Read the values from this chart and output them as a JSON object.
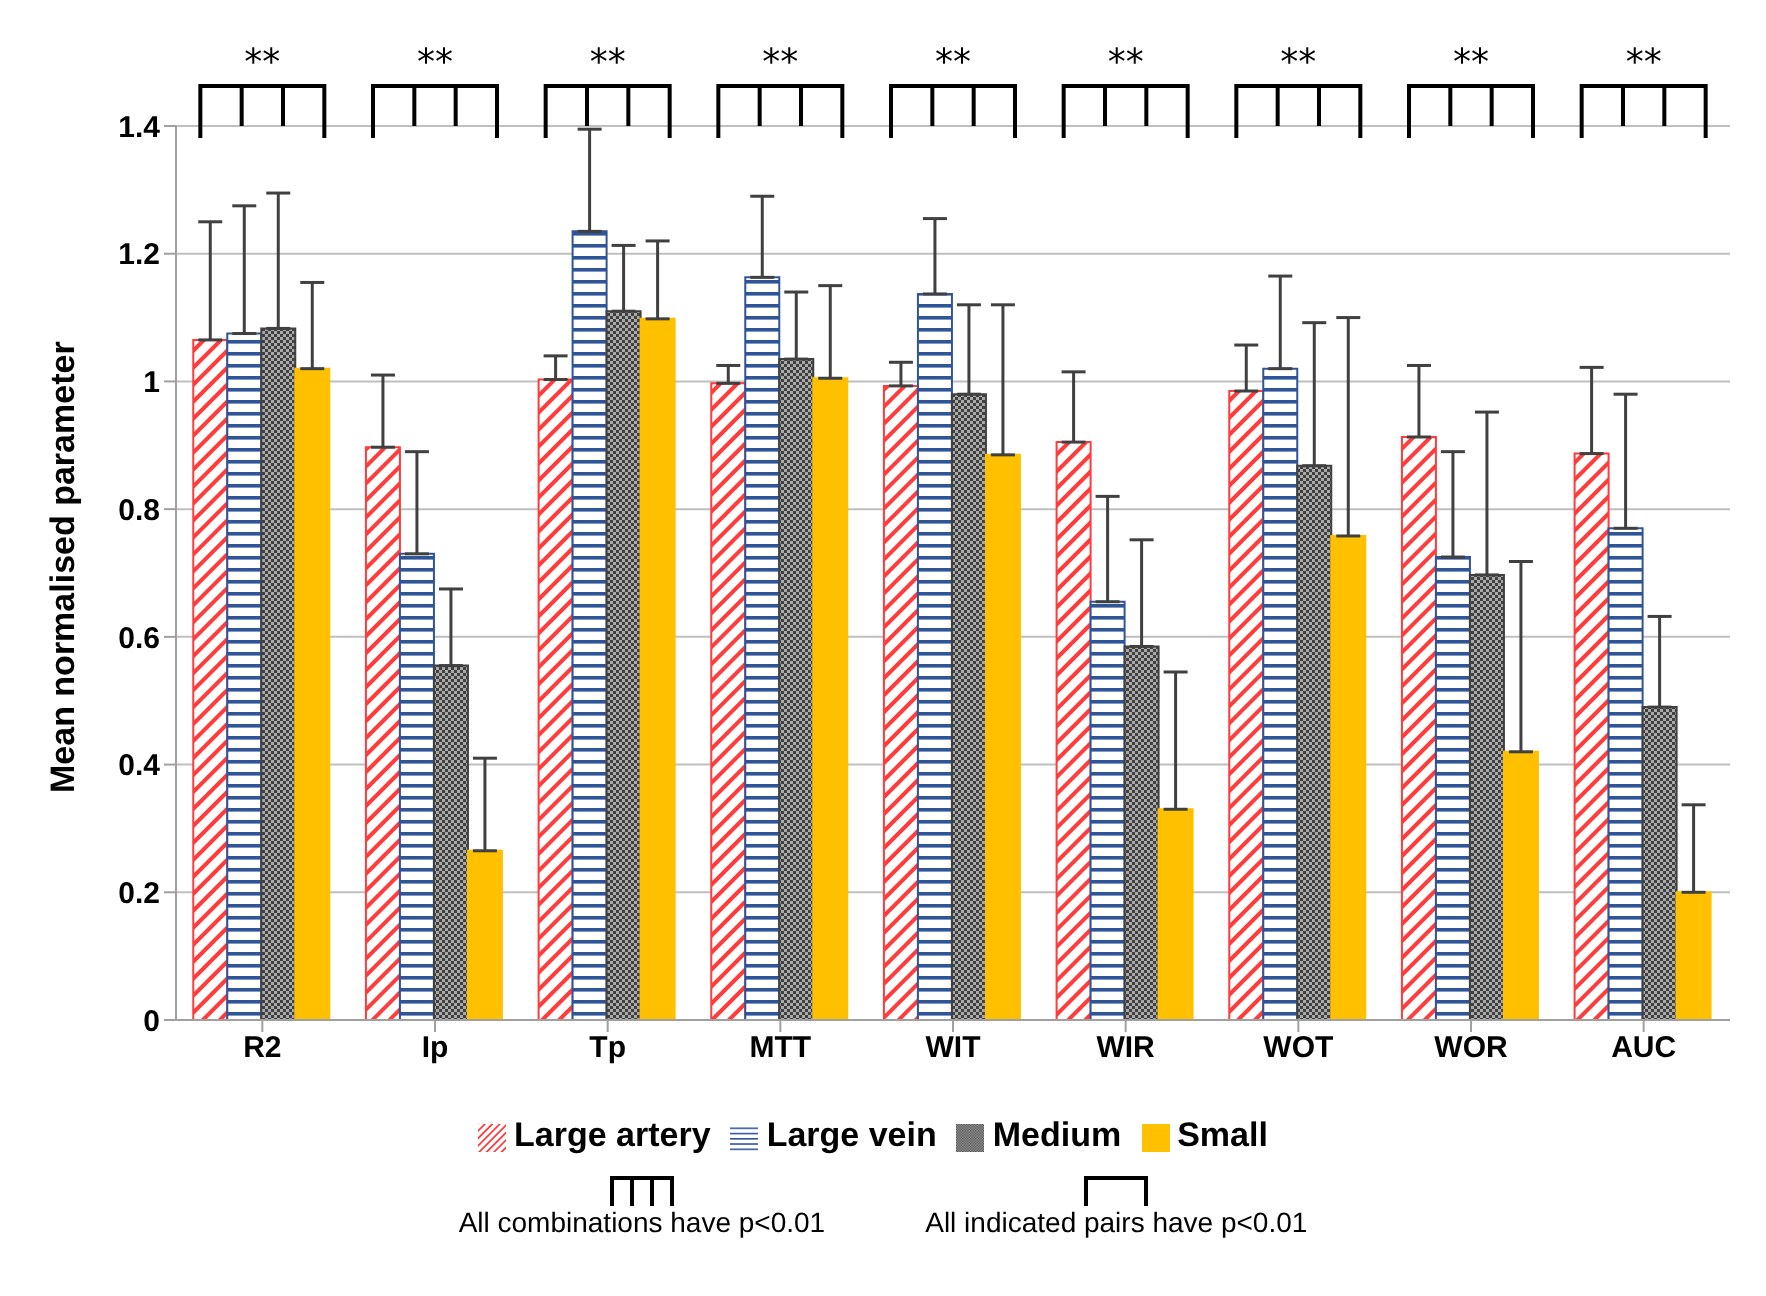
{
  "chart_data": {
    "type": "bar",
    "ylabel": "Mean normalised parameter",
    "categories": [
      "R2",
      "Ip",
      "Tp",
      "MTT",
      "WIT",
      "WIR",
      "WOT",
      "WOR",
      "AUC"
    ],
    "series": [
      {
        "name": "Large artery",
        "color": "#ff3b3b",
        "values": [
          1.065,
          0.897,
          1.003,
          0.997,
          0.993,
          0.905,
          0.985,
          0.913,
          0.887
        ],
        "errors": [
          [
            1.065,
            1.25
          ],
          [
            0.897,
            1.01
          ],
          [
            1.003,
            1.04
          ],
          [
            0.997,
            1.025
          ],
          [
            0.993,
            1.03
          ],
          [
            0.905,
            1.015
          ],
          [
            0.985,
            1.057
          ],
          [
            0.913,
            1.025
          ],
          [
            0.887,
            1.022
          ]
        ]
      },
      {
        "name": "Large vein",
        "color": "#2f5597",
        "values": [
          1.075,
          0.73,
          1.235,
          1.163,
          1.137,
          0.655,
          1.02,
          0.725,
          0.77
        ],
        "errors": [
          [
            1.075,
            1.275
          ],
          [
            0.73,
            0.89
          ],
          [
            1.235,
            1.395
          ],
          [
            1.163,
            1.29
          ],
          [
            1.137,
            1.255
          ],
          [
            0.655,
            0.82
          ],
          [
            1.02,
            1.165
          ],
          [
            0.725,
            0.89
          ],
          [
            0.77,
            0.98
          ]
        ]
      },
      {
        "name": "Medium",
        "color": "#404040",
        "values": [
          1.083,
          0.555,
          1.11,
          1.035,
          0.98,
          0.585,
          0.868,
          0.697,
          0.49
        ],
        "errors": [
          [
            1.083,
            1.295
          ],
          [
            0.555,
            0.675
          ],
          [
            1.11,
            1.213
          ],
          [
            1.035,
            1.14
          ],
          [
            0.98,
            1.12
          ],
          [
            0.585,
            0.752
          ],
          [
            0.868,
            1.092
          ],
          [
            0.697,
            0.952
          ],
          [
            0.49,
            0.632
          ]
        ]
      },
      {
        "name": "Small",
        "color": "#ffc000",
        "values": [
          1.02,
          0.265,
          1.098,
          1.005,
          0.885,
          0.33,
          0.758,
          0.42,
          0.2
        ],
        "errors": [
          [
            1.02,
            1.155
          ],
          [
            0.265,
            0.41
          ],
          [
            1.098,
            1.22
          ],
          [
            1.005,
            1.15
          ],
          [
            0.885,
            1.12
          ],
          [
            0.33,
            0.545
          ],
          [
            0.758,
            1.1
          ],
          [
            0.42,
            0.718
          ],
          [
            0.2,
            0.337
          ]
        ]
      }
    ],
    "ylim": [
      0,
      1.4
    ],
    "yticks": [
      0,
      0.2,
      0.4,
      0.6,
      0.8,
      1,
      1.2,
      1.4
    ],
    "grid": "y",
    "legend": "bottom",
    "annotations": [
      "**",
      "**",
      "**",
      "**",
      "**",
      "**",
      "**",
      "**",
      "**",
      "All combinations have p<0.01",
      "All indicated pairs have p<0.01"
    ]
  }
}
